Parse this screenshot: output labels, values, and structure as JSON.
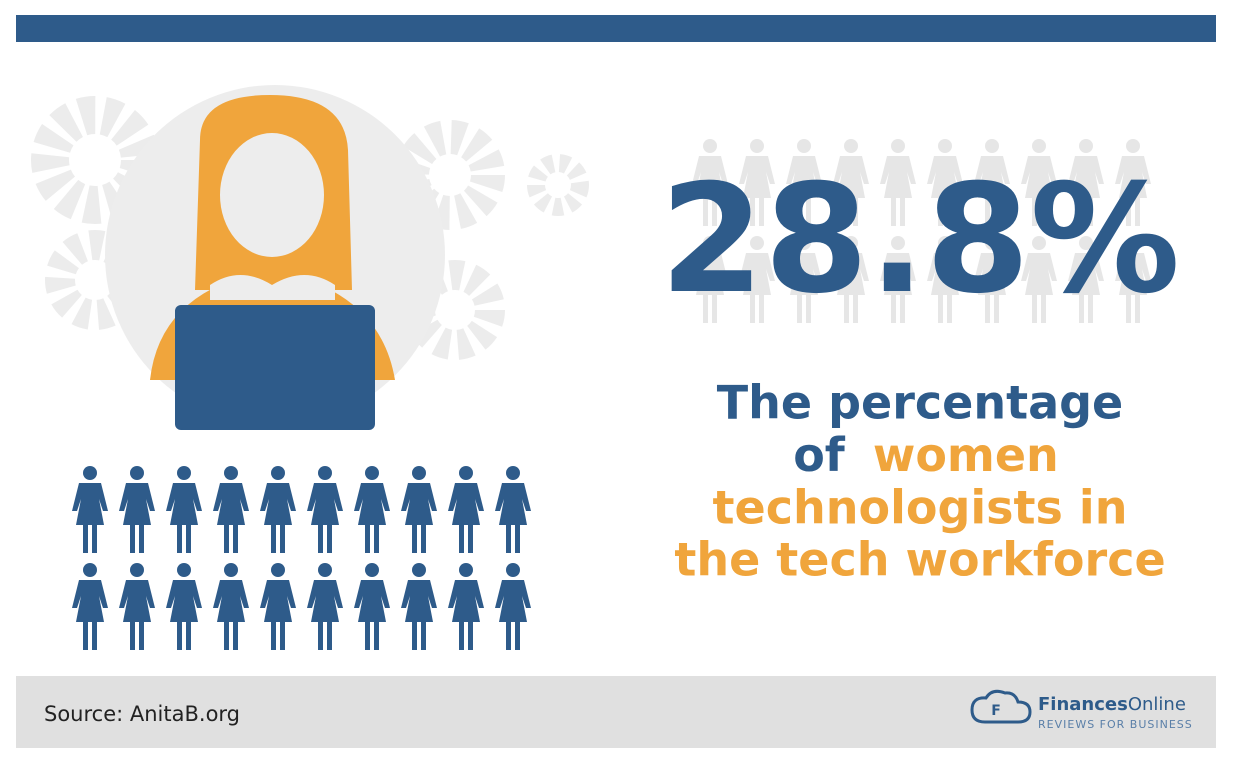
{
  "stat": {
    "value": 28.8,
    "label": "28.8%"
  },
  "caption": {
    "line1": "The percentage",
    "line2a": "of",
    "line2b": "women",
    "line3": "technologists in",
    "line4": "the tech workforce"
  },
  "footer": {
    "source": "Source: AnitaB.org",
    "brand_bold": "Finances",
    "brand_light": "Online",
    "tagline": "REVIEWS FOR BUSINESS"
  }
}
